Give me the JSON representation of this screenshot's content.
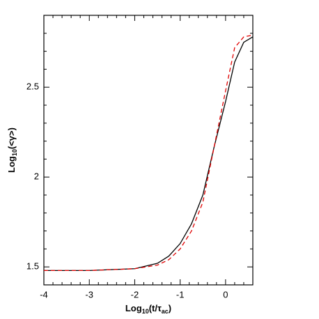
{
  "chart_data": {
    "type": "line",
    "xlabel_parts": [
      "Log",
      "10",
      "(t/τ",
      "ac",
      ")"
    ],
    "ylabel_parts": [
      "Log",
      "10",
      "(<γ>)"
    ],
    "x": [
      -4,
      -3,
      -2,
      -1.5,
      -1.25,
      -1,
      -0.75,
      -0.5,
      -0.25,
      0,
      0.2,
      0.4,
      0.6
    ],
    "series": [
      {
        "color": "#000000",
        "dash": false,
        "values": [
          1.48,
          1.48,
          1.49,
          1.52,
          1.56,
          1.63,
          1.74,
          1.9,
          2.17,
          2.42,
          2.64,
          2.75,
          2.78
        ]
      },
      {
        "color": "#e00000",
        "dash": true,
        "values": [
          1.48,
          1.48,
          1.49,
          1.51,
          1.54,
          1.6,
          1.7,
          1.86,
          2.17,
          2.48,
          2.72,
          2.78,
          2.79
        ]
      }
    ],
    "xlim": [
      -4,
      0.6
    ],
    "ylim": [
      1.4,
      2.9
    ],
    "xticks": [
      -4,
      -3,
      -2,
      -1,
      0
    ],
    "yticks": [
      1.5,
      2,
      2.5
    ],
    "xminorticks": [
      -3.8,
      -3.6,
      -3.4,
      -3.2,
      -2.8,
      -2.6,
      -2.4,
      -2.2,
      -1.8,
      -1.6,
      -1.4,
      -1.2,
      -0.8,
      -0.6,
      -0.4,
      -0.2,
      0.2,
      0.4
    ],
    "yminorticks": [
      1.6,
      1.7,
      1.8,
      1.9,
      2.1,
      2.2,
      2.3,
      2.4,
      2.6,
      2.7,
      2.8
    ]
  }
}
